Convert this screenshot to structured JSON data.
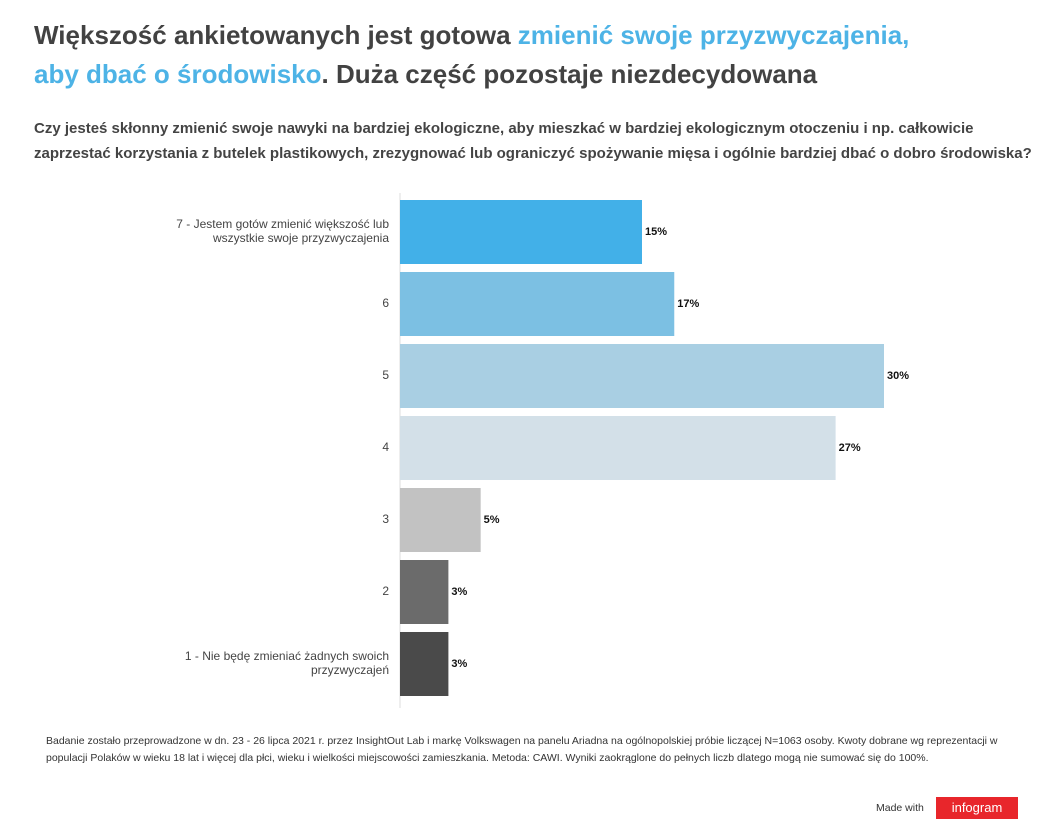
{
  "chart_data": {
    "type": "bar",
    "title_parts": [
      {
        "text": "Większość ankietowanych jest gotowa ",
        "color": "#424242"
      },
      {
        "text": "zmienić swoje przyzwyczajenia,",
        "color": "#4db3e6"
      },
      {
        "text": "aby dbać o środowisko",
        "color": "#4db3e6"
      },
      {
        "text": ". Duża część pozostaje niezdecydowana",
        "color": "#424242"
      }
    ],
    "subtitle": "Czy jesteś skłonny zmienić swoje nawyki na bardziej ekologiczne, aby mieszkać w bardziej ekologicznym otoczeniu i np. całkowicie zaprzestać korzystania z butelek plastikowych, zrezygnować lub ograniczyć spożywanie mięsa i ogólnie bardziej dbać o dobro środowiska?",
    "categories": [
      "7 - Jestem gotów zmienić większość lub wszystkie swoje przyzwyczajenia",
      "6",
      "5",
      "4",
      "3",
      "2",
      "1 - Nie będę zmieniać żadnych swoich przyzwyczajeń"
    ],
    "values": [
      15,
      17,
      30,
      27,
      5,
      3,
      3
    ],
    "value_labels": [
      "15%",
      "17%",
      "30%",
      "27%",
      "5%",
      "3%",
      "3%"
    ],
    "colors": [
      "#42b0e8",
      "#7cc0e3",
      "#a9cfe3",
      "#d3e0e8",
      "#c2c2c2",
      "#6b6b6b",
      "#4a4a4a"
    ],
    "footnote": "Badanie zostało przeprowadzone w dn. 23 - 26 lipca 2021 r. przez InsightOut Lab i markę Volkswagen na panelu Ariadna na ogólnopolskiej próbie liczącej N=1063 osoby. Kwoty dobrane wg reprezentacji w populacji Polaków w wieku 18 lat i więcej dla płci, wieku i wielkości miejscowości zamieszkania. Metoda: CAWI. Wyniki zaokrąglone do pełnych liczb dlatego mogą nie sumować się do 100%.",
    "made_with": "Made with",
    "brand": "infogram"
  }
}
